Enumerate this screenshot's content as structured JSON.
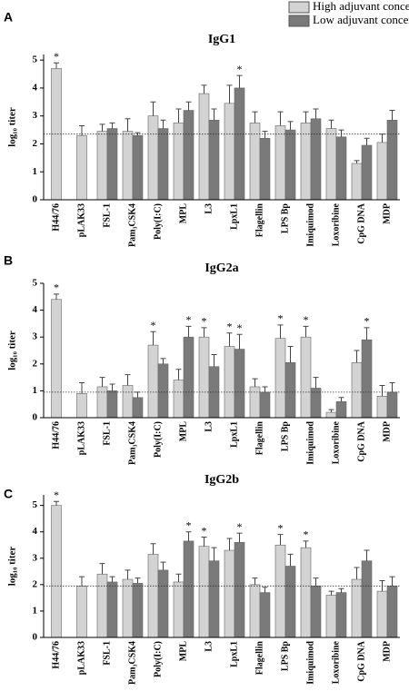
{
  "chart_data": [
    {
      "type": "bar",
      "panel_label": "A",
      "title": "IgG1",
      "y_label": "log₁₀ titer",
      "categories": [
        "H44/76",
        "pLAK33",
        "FSL-1",
        "Pam₃CSK4",
        "Poly(I:C)",
        "MPL",
        "L3",
        "LpxL1",
        "Flagellin",
        "LPS Bp",
        "Imiquimod",
        "Loxoribine",
        "CpG DNA",
        "MDP"
      ],
      "series": [
        {
          "name": "High adjuvant concentration",
          "color": "#d3d3d3",
          "values": [
            4.7,
            2.3,
            2.45,
            2.45,
            3.0,
            2.75,
            3.8,
            3.45,
            2.75,
            2.65,
            2.75,
            2.55,
            1.3,
            2.05
          ],
          "errors": [
            0.2,
            0.35,
            0.25,
            0.45,
            0.5,
            0.5,
            0.3,
            0.65,
            0.4,
            0.5,
            0.4,
            0.3,
            0.1,
            0.3
          ],
          "markers": [
            "*",
            null,
            null,
            null,
            null,
            null,
            null,
            null,
            null,
            null,
            null,
            null,
            null,
            null
          ]
        },
        {
          "name": "Low adjuvant concentration",
          "color": "#7a7a7a",
          "values": [
            null,
            null,
            2.55,
            2.3,
            2.55,
            3.2,
            2.85,
            4.0,
            2.2,
            2.5,
            2.9,
            2.25,
            1.95,
            2.85
          ],
          "errors": [
            null,
            null,
            0.2,
            0.1,
            0.3,
            0.3,
            0.4,
            0.45,
            0.25,
            0.3,
            0.35,
            0.25,
            0.25,
            0.35
          ],
          "markers": [
            null,
            null,
            null,
            null,
            null,
            null,
            null,
            "*",
            null,
            null,
            null,
            null,
            null,
            null
          ]
        }
      ],
      "ylim": [
        0,
        5.2
      ],
      "yticks": [
        0,
        1,
        2,
        3,
        4,
        5
      ],
      "reference_line": 2.35
    },
    {
      "type": "bar",
      "panel_label": "B",
      "title": "IgG2a",
      "y_label": "log₁₀ titer",
      "categories": [
        "H44/76",
        "pLAK33",
        "FSL-1",
        "Pam₃CSK4",
        "Poly(I:C)",
        "MPL",
        "L3",
        "LpxL1",
        "Flagellin",
        "LPS Bp",
        "Imiquimod",
        "Loxoribine",
        "CpG DNA",
        "MDP"
      ],
      "series": [
        {
          "color": "#d3d3d3",
          "values": [
            4.4,
            0.9,
            1.15,
            1.2,
            2.7,
            1.4,
            3.0,
            2.65,
            1.15,
            2.95,
            3.0,
            0.2,
            2.05,
            0.8
          ],
          "errors": [
            0.2,
            0.4,
            0.35,
            0.4,
            0.5,
            0.4,
            0.35,
            0.5,
            0.3,
            0.5,
            0.4,
            0.1,
            0.45,
            0.4
          ],
          "markers": [
            "*",
            null,
            null,
            null,
            "*",
            null,
            "*",
            "*",
            null,
            "*",
            "*",
            null,
            null,
            null
          ]
        },
        {
          "color": "#7a7a7a",
          "values": [
            null,
            null,
            1.0,
            0.75,
            2.0,
            3.0,
            1.9,
            2.55,
            0.95,
            2.05,
            1.1,
            0.6,
            2.9,
            0.95
          ],
          "errors": [
            null,
            null,
            0.25,
            0.2,
            0.2,
            0.4,
            0.45,
            0.55,
            0.2,
            0.6,
            0.4,
            0.15,
            0.45,
            0.35
          ],
          "markers": [
            null,
            null,
            null,
            null,
            null,
            "*",
            null,
            "*",
            null,
            null,
            null,
            null,
            "*",
            null
          ]
        }
      ],
      "ylim": [
        0,
        5
      ],
      "yticks": [
        0,
        1,
        2,
        3,
        4,
        5
      ],
      "reference_line": 0.95
    },
    {
      "type": "bar",
      "panel_label": "C",
      "title": "IgG2b",
      "y_label": "log₁₀ titer",
      "categories": [
        "H44/76",
        "pLAK33",
        "FSL-1",
        "Pam₃CSK4",
        "Poly(I:C)",
        "MPL",
        "L3",
        "LpxL1",
        "Flagellin",
        "LPS Bp",
        "Imiquimod",
        "Loxoribine",
        "CpG DNA",
        "MDP"
      ],
      "series": [
        {
          "color": "#d3d3d3",
          "values": [
            5.0,
            1.95,
            2.4,
            2.2,
            3.15,
            2.1,
            3.45,
            3.3,
            2.0,
            3.5,
            3.4,
            1.6,
            2.2,
            1.75
          ],
          "errors": [
            0.15,
            0.35,
            0.4,
            0.35,
            0.4,
            0.3,
            0.35,
            0.45,
            0.25,
            0.4,
            0.25,
            0.15,
            0.45,
            0.4
          ],
          "markers": [
            "*",
            null,
            null,
            null,
            null,
            null,
            "*",
            null,
            null,
            "*",
            "*",
            null,
            null,
            null
          ]
        },
        {
          "color": "#7a7a7a",
          "values": [
            null,
            null,
            2.1,
            2.05,
            2.55,
            3.65,
            2.9,
            3.6,
            1.7,
            2.7,
            1.95,
            1.7,
            2.9,
            1.95
          ],
          "errors": [
            null,
            null,
            0.2,
            0.2,
            0.3,
            0.35,
            0.5,
            0.35,
            0.2,
            0.45,
            0.3,
            0.15,
            0.4,
            0.35
          ],
          "markers": [
            null,
            null,
            null,
            null,
            null,
            "*",
            null,
            "*",
            null,
            null,
            null,
            null,
            null,
            null
          ]
        }
      ],
      "ylim": [
        0,
        5.4
      ],
      "yticks": [
        0,
        1,
        2,
        3,
        4,
        5
      ],
      "reference_line": 1.95
    }
  ]
}
